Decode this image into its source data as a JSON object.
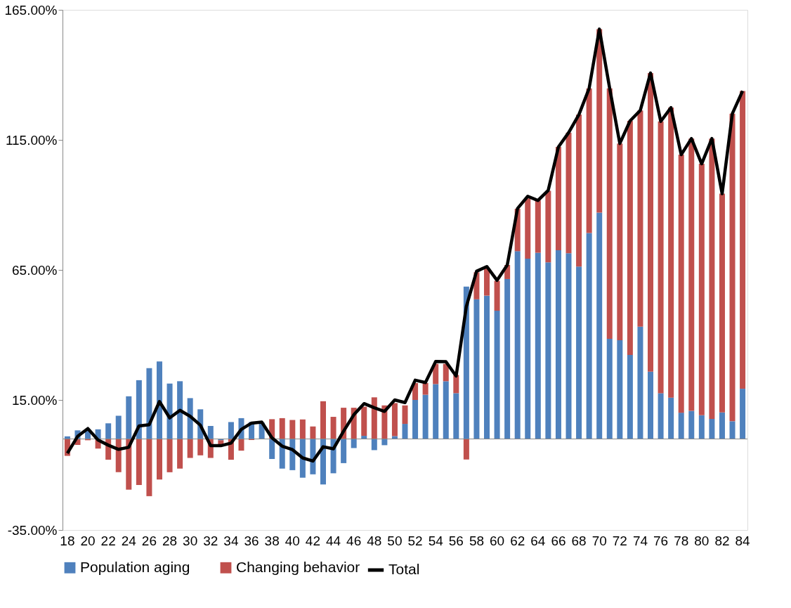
{
  "chart_data": {
    "type": "bar",
    "stacked": true,
    "legend": "bottom",
    "categories": [
      "18",
      null,
      "20",
      null,
      "22",
      null,
      "24",
      null,
      "26",
      null,
      "28",
      null,
      "30",
      null,
      "32",
      null,
      "34",
      null,
      "36",
      null,
      "38",
      null,
      "40",
      null,
      "42",
      null,
      "44",
      null,
      "46",
      null,
      "48",
      null,
      "50",
      null,
      "52",
      null,
      "54",
      null,
      "56",
      null,
      "58",
      null,
      "60",
      null,
      "62",
      null,
      "64",
      null,
      "66",
      null,
      "68",
      null,
      "70",
      null,
      "72",
      null,
      "74",
      null,
      "76",
      null,
      "78",
      null,
      "80",
      null,
      "82",
      null,
      "84"
    ],
    "ylim": [
      -35,
      165
    ],
    "yticks": [
      {
        "value": -35,
        "label": "-35.00%"
      },
      {
        "value": 15,
        "label": "15.00%"
      },
      {
        "value": 65,
        "label": "65.00%"
      },
      {
        "value": 115,
        "label": "115.00%"
      },
      {
        "value": 165,
        "label": "165.00%"
      }
    ],
    "series": [
      {
        "name": "Population aging",
        "color": "#4f81bd",
        "values": [
          1.0,
          3.3,
          3.5,
          3.7,
          6.0,
          8.9,
          16.4,
          22.6,
          27.2,
          29.8,
          21.3,
          22.2,
          15.7,
          11.4,
          5.0,
          -0.5,
          6.5,
          8.0,
          6.5,
          6.3,
          -7.7,
          -11.4,
          -12,
          -14.9,
          -13.6,
          -17.5,
          -13.2,
          -9.3,
          -3.5,
          1.2,
          -4.3,
          -2.4,
          1.1,
          5.8,
          15.0,
          17.0,
          21.1,
          22.2,
          17.6,
          58.6,
          53.7,
          55.1,
          49.3,
          61.5,
          72.2,
          69.3,
          71.6,
          67.9,
          72.6,
          71.4,
          66.3,
          79.2,
          87.0,
          38.5,
          38.0,
          32.3,
          43.2,
          25.9,
          17.6,
          15.9,
          10.1,
          10.8,
          9.1,
          7.7,
          10.2,
          6.8,
          19.3
        ]
      },
      {
        "name": "Changing behavior",
        "color": "#c0504d",
        "values": [
          -6.5,
          -2.3,
          -0.5,
          -3.7,
          -8.0,
          -12.8,
          -19.5,
          -17.7,
          -22.0,
          -15.6,
          -12.8,
          -11.4,
          -7.3,
          -6.3,
          -7.3,
          -2.0,
          -8.0,
          -4.5,
          -0.4,
          null,
          7.6,
          8.0,
          7.3,
          7.5,
          4.8,
          14.5,
          8.5,
          12.0,
          12.0,
          11.2,
          16.0,
          12.9,
          12.7,
          7.1,
          6.5,
          4.5,
          7.8,
          6.7,
          7.0,
          -7.9,
          10.4,
          10.8,
          11.5,
          5.4,
          16.3,
          23.2,
          20.1,
          27.5,
          39.7,
          46.4,
          58.4,
          55.6,
          70.6,
          96.3,
          75.6,
          90.0,
          83.1,
          114.8,
          104.5,
          111.5,
          99.2,
          104.7,
          96.7,
          107.8,
          84.1,
          118.3,
          114.5
        ]
      },
      {
        "name": "Total",
        "type": "line",
        "color": "#000000",
        "values": [
          -5.5,
          1.0,
          4.0,
          -0.4,
          -2.4,
          -4.0,
          -3.2,
          5.0,
          5.5,
          14.4,
          8.1,
          11.0,
          8.7,
          5.3,
          -2.6,
          -2.6,
          -1.6,
          3.7,
          6.1,
          6.5,
          0.4,
          -2.8,
          -4.1,
          -7.3,
          -8.5,
          -3.0,
          -3.8,
          3.0,
          9.3,
          13.6,
          12.0,
          10.6,
          15.0,
          14.0,
          22.6,
          21.7,
          29.8,
          29.7,
          24.2,
          51.0,
          64.5,
          66.3,
          61.0,
          66.9,
          88.6,
          93.3,
          91.7,
          95.6,
          112.3,
          117.8,
          124.7,
          134.8,
          157.6,
          135.0,
          113.6,
          122.3,
          126.3,
          140.7,
          122.1,
          127.4,
          109.3,
          115.5,
          105.8,
          115.5,
          94.3,
          125.1,
          133.8
        ]
      }
    ]
  }
}
